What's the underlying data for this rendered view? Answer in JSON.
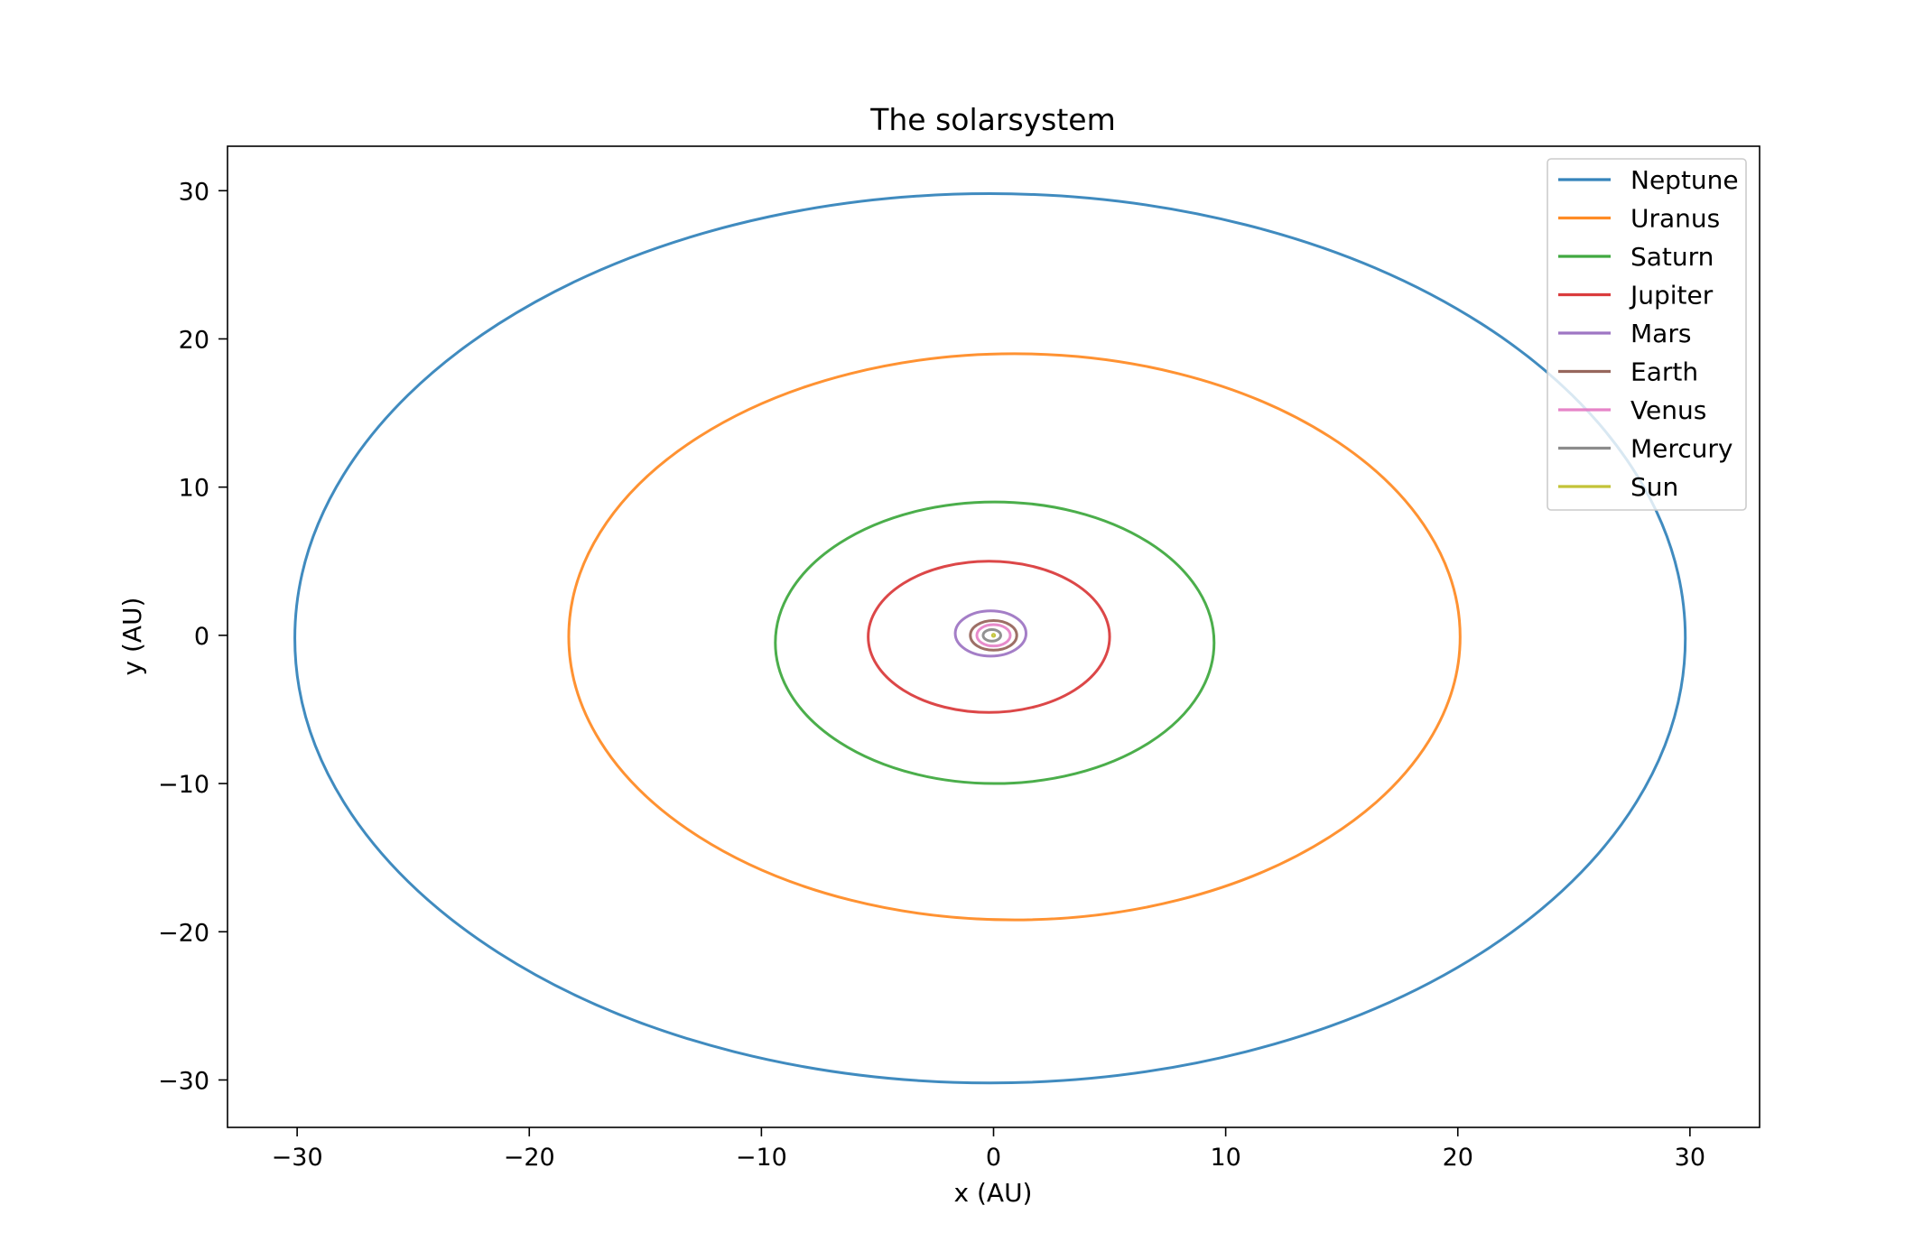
{
  "chart_data": {
    "type": "line",
    "title": "The solarsystem",
    "xlabel": "x (AU)",
    "ylabel": "y (AU)",
    "xlim": [
      -33,
      33
    ],
    "ylim": [
      -33.2,
      33
    ],
    "xticks": [
      -30,
      -20,
      -10,
      0,
      10,
      20,
      30
    ],
    "yticks": [
      -30,
      -20,
      -10,
      0,
      10,
      20,
      30
    ],
    "xtick_labels": [
      "−30",
      "−20",
      "−10",
      "0",
      "10",
      "20",
      "30"
    ],
    "ytick_labels": [
      "−30",
      "−20",
      "−10",
      "0",
      "10",
      "20",
      "30"
    ],
    "grid": false,
    "legend_position": "top-right",
    "series": [
      {
        "name": "Neptune",
        "color": "#1f77b4",
        "orbit": {
          "x_min": -30.1,
          "x_max": 29.8,
          "y_min": -30.2,
          "y_max": 29.8
        }
      },
      {
        "name": "Uranus",
        "color": "#ff7f0e",
        "orbit": {
          "x_min": -18.3,
          "x_max": 20.1,
          "y_min": -19.2,
          "y_max": 19.0
        }
      },
      {
        "name": "Saturn",
        "color": "#2ca02c",
        "orbit": {
          "x_min": -9.4,
          "x_max": 9.5,
          "y_min": -10.0,
          "y_max": 9.0
        }
      },
      {
        "name": "Jupiter",
        "color": "#d62728",
        "orbit": {
          "x_min": -5.4,
          "x_max": 5.0,
          "y_min": -5.2,
          "y_max": 5.0
        }
      },
      {
        "name": "Mars",
        "color": "#9467bd",
        "orbit": {
          "x_min": -1.65,
          "x_max": 1.4,
          "y_min": -1.4,
          "y_max": 1.65
        }
      },
      {
        "name": "Earth",
        "color": "#8c564b",
        "orbit": {
          "x_min": -1.0,
          "x_max": 1.0,
          "y_min": -1.0,
          "y_max": 1.0
        }
      },
      {
        "name": "Venus",
        "color": "#e377c2",
        "orbit": {
          "x_min": -0.72,
          "x_max": 0.72,
          "y_min": -0.72,
          "y_max": 0.72
        }
      },
      {
        "name": "Mercury",
        "color": "#7f7f7f",
        "orbit": {
          "x_min": -0.45,
          "x_max": 0.31,
          "y_min": -0.39,
          "y_max": 0.39
        }
      },
      {
        "name": "Sun",
        "color": "#bcbd22",
        "orbit": {
          "x_min": -0.01,
          "x_max": 0.01,
          "y_min": -0.01,
          "y_max": 0.01
        }
      }
    ]
  }
}
